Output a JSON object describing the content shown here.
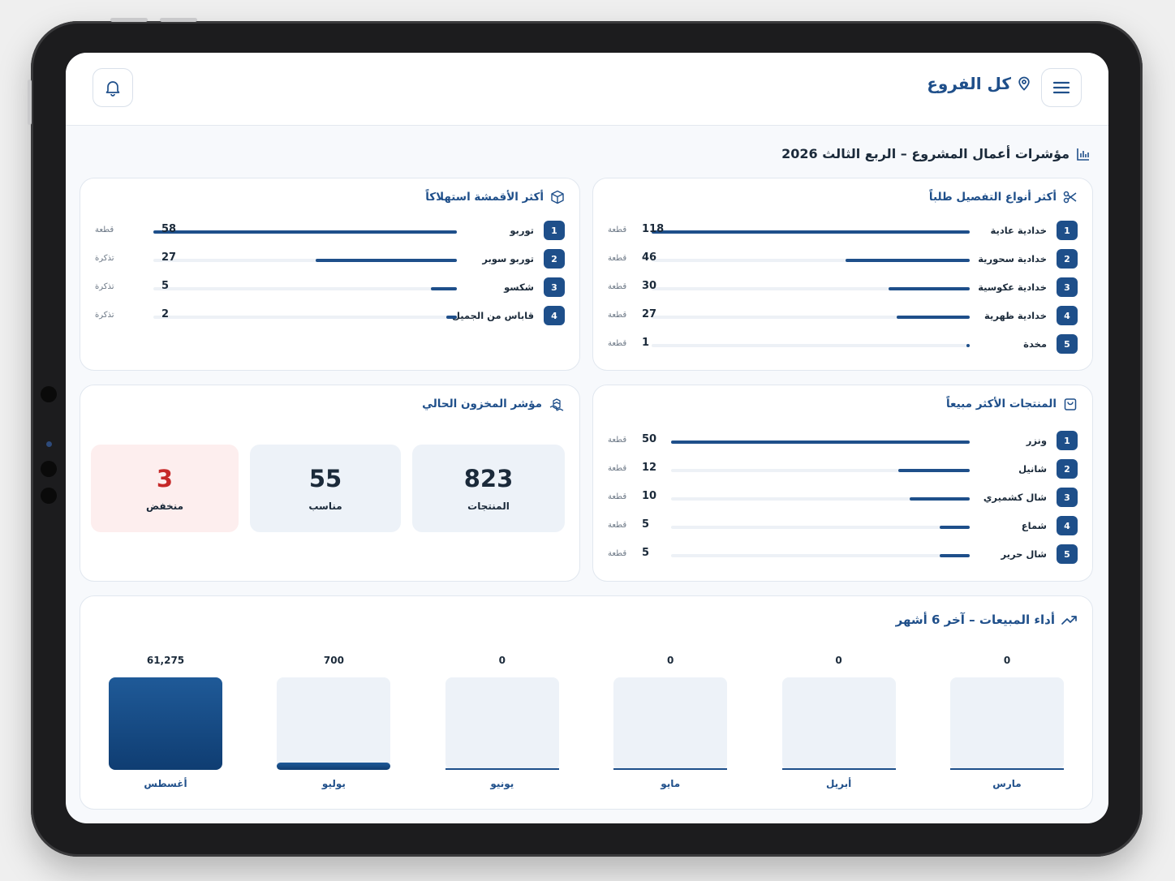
{
  "header": {
    "branch_label": "كل الفروع"
  },
  "page": {
    "title": "مؤشرات أعمال المشروع – الربع الثالث 2026"
  },
  "colors": {
    "primary": "#1e4f8a",
    "low_stock_bg": "#fdeeee",
    "low_stock_text": "#c62828"
  },
  "tailoring": {
    "title": "أكثر أنواع التفصيل طلباً",
    "max": 118,
    "items": [
      {
        "rank": "1",
        "name": "خدادية عادية",
        "value": 118,
        "unit": "قطعة"
      },
      {
        "rank": "2",
        "name": "خدادية سحورية",
        "value": 46,
        "unit": "قطعة"
      },
      {
        "rank": "3",
        "name": "خدادية عكوسية",
        "value": 30,
        "unit": "قطعة"
      },
      {
        "rank": "4",
        "name": "خدادية ظهرية",
        "value": 27,
        "unit": "قطعة"
      },
      {
        "rank": "5",
        "name": "مخدة",
        "value": 1,
        "unit": "قطعة"
      }
    ]
  },
  "fabrics": {
    "title": "أكثر الأقمشة استهلاكاً",
    "max": 58,
    "items": [
      {
        "rank": "1",
        "name": "توربو",
        "value": 58,
        "unit": "قطعة"
      },
      {
        "rank": "2",
        "name": "توربو سوبر",
        "value": 27,
        "unit": "تذكرة"
      },
      {
        "rank": "3",
        "name": "شكسو",
        "value": 5,
        "unit": "تذكرة"
      },
      {
        "rank": "4",
        "name": "قاباس من الجميل",
        "value": 2,
        "unit": "تذكرة"
      }
    ]
  },
  "bestsellers": {
    "title": "المنتجات الأكثر مبيعاً",
    "max": 50,
    "items": [
      {
        "rank": "1",
        "name": "ونزر",
        "value": 50,
        "unit": "قطعة"
      },
      {
        "rank": "2",
        "name": "شانيل",
        "value": 12,
        "unit": "قطعة"
      },
      {
        "rank": "3",
        "name": "شال كشميري",
        "value": 10,
        "unit": "قطعة"
      },
      {
        "rank": "4",
        "name": "شماع",
        "value": 5,
        "unit": "قطعة"
      },
      {
        "rank": "5",
        "name": "شال حرير",
        "value": 5,
        "unit": "قطعة"
      }
    ]
  },
  "inventory": {
    "title": "مؤشر المخزون الحالي",
    "stats": [
      {
        "value": "823",
        "label": "المنتجات",
        "kind": "normal"
      },
      {
        "value": "55",
        "label": "مناسب",
        "kind": "normal"
      },
      {
        "value": "3",
        "label": "منخفض",
        "kind": "low"
      }
    ]
  },
  "sales": {
    "title": "أداء المبيعات – آخر 6 أشهر",
    "chart_data": {
      "type": "bar",
      "categories": [
        "مارس",
        "أبريل",
        "مايو",
        "يونيو",
        "يوليو",
        "أغسطس"
      ],
      "values": [
        0,
        0,
        0,
        0,
        700,
        61275
      ],
      "value_labels": [
        "0",
        "0",
        "0",
        "0",
        "700",
        "61,275"
      ],
      "ylim": [
        0,
        61275
      ]
    }
  }
}
